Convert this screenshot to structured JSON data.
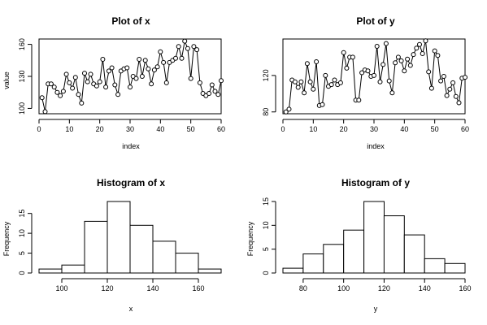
{
  "chart_data": [
    {
      "type": "line",
      "title": "Plot of x",
      "xlabel": "index",
      "ylabel": "value",
      "xlim": [
        0,
        60
      ],
      "ylim": [
        95,
        165
      ],
      "xticks": [
        0,
        10,
        20,
        30,
        40,
        50,
        60
      ],
      "yticks": [
        100,
        130,
        160
      ],
      "x": [
        1,
        2,
        3,
        4,
        5,
        6,
        7,
        8,
        9,
        10,
        11,
        12,
        13,
        14,
        15,
        16,
        17,
        18,
        19,
        20,
        21,
        22,
        23,
        24,
        25,
        26,
        27,
        28,
        29,
        30,
        31,
        32,
        33,
        34,
        35,
        36,
        37,
        38,
        39,
        40,
        41,
        42,
        43,
        44,
        45,
        46,
        47,
        48,
        49,
        50,
        51,
        52,
        53,
        54,
        55,
        56,
        57,
        58,
        59,
        60
      ],
      "values": [
        110,
        97,
        123,
        123,
        120,
        115,
        112,
        116,
        132,
        124,
        119,
        129,
        113,
        105,
        133,
        125,
        132,
        123,
        121,
        125,
        146,
        120,
        135,
        138,
        122,
        113,
        135,
        137,
        138,
        120,
        130,
        128,
        146,
        130,
        145,
        137,
        123,
        136,
        139,
        153,
        143,
        124,
        143,
        145,
        147,
        158,
        147,
        163,
        156,
        128,
        158,
        155,
        124,
        114,
        112,
        114,
        122,
        116,
        113,
        126
      ]
    },
    {
      "type": "line",
      "title": "Plot of y",
      "xlabel": "index",
      "ylabel": "",
      "xlim": [
        0,
        60
      ],
      "ylim": [
        78,
        160
      ],
      "xticks": [
        0,
        10,
        20,
        30,
        40,
        50,
        60
      ],
      "yticks": [
        80,
        120
      ],
      "x": [
        1,
        2,
        3,
        4,
        5,
        6,
        7,
        8,
        9,
        10,
        11,
        12,
        13,
        14,
        15,
        16,
        17,
        18,
        19,
        20,
        21,
        22,
        23,
        24,
        25,
        26,
        27,
        28,
        29,
        30,
        31,
        32,
        33,
        34,
        35,
        36,
        37,
        38,
        39,
        40,
        41,
        42,
        43,
        44,
        45,
        46,
        47,
        48,
        49,
        50,
        51,
        52,
        53,
        54,
        55,
        56,
        57,
        58,
        59,
        60
      ],
      "values": [
        80,
        83,
        115,
        113,
        107,
        113,
        101,
        133,
        113,
        105,
        135,
        87,
        88,
        120,
        108,
        110,
        115,
        110,
        112,
        145,
        128,
        140,
        140,
        93,
        93,
        123,
        126,
        125,
        119,
        120,
        152,
        113,
        132,
        155,
        114,
        101,
        134,
        140,
        136,
        125,
        138,
        131,
        143,
        150,
        154,
        144,
        158,
        124,
        106,
        147,
        142,
        114,
        119,
        98,
        105,
        112,
        97,
        90,
        117,
        118
      ]
    },
    {
      "type": "bar",
      "title": "Histogram of x",
      "xlabel": "x",
      "ylabel": "Frequency",
      "xlim": [
        90,
        170
      ],
      "ylim": [
        0,
        18
      ],
      "xticks": [
        100,
        120,
        140,
        160
      ],
      "yticks": [
        0,
        5,
        10,
        15
      ],
      "bins": [
        [
          90,
          100
        ],
        [
          100,
          110
        ],
        [
          110,
          120
        ],
        [
          120,
          130
        ],
        [
          130,
          140
        ],
        [
          140,
          150
        ],
        [
          150,
          160
        ],
        [
          160,
          170
        ]
      ],
      "values": [
        1,
        2,
        13,
        18,
        12,
        8,
        5,
        1
      ]
    },
    {
      "type": "bar",
      "title": "Histogram of y",
      "xlabel": "y",
      "ylabel": "Frequency",
      "xlim": [
        70,
        160
      ],
      "ylim": [
        0,
        15
      ],
      "xticks": [
        80,
        100,
        120,
        140,
        160
      ],
      "yticks": [
        0,
        5,
        10,
        15
      ],
      "bins": [
        [
          70,
          80
        ],
        [
          80,
          90
        ],
        [
          90,
          100
        ],
        [
          100,
          110
        ],
        [
          110,
          120
        ],
        [
          120,
          130
        ],
        [
          130,
          140
        ],
        [
          140,
          150
        ],
        [
          150,
          160
        ]
      ],
      "values": [
        1,
        4,
        6,
        9,
        15,
        12,
        8,
        3,
        2
      ]
    }
  ]
}
